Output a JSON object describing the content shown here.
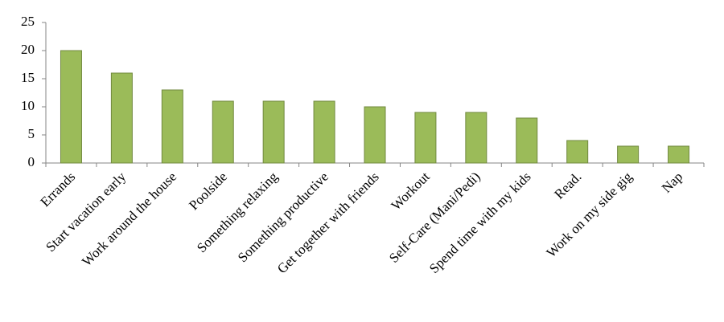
{
  "chart_data": {
    "type": "bar",
    "categories": [
      "Errands",
      "Start vacation early",
      "Work around the house",
      "Poolside",
      "Something relaxing",
      "Something productive",
      "Get together with friends",
      "Workout",
      "Self-Care (Mani/Pedi)",
      "Spend time with my kids",
      "Read.",
      "Work on my side gig",
      "Nap"
    ],
    "values": [
      20,
      16,
      13,
      11,
      11,
      11,
      10,
      9,
      9,
      8,
      4,
      3,
      3
    ],
    "color": "#9bbb59",
    "ylim": [
      0,
      25
    ],
    "yticks": [
      0,
      5,
      10,
      15,
      20,
      25
    ],
    "grid": false
  }
}
